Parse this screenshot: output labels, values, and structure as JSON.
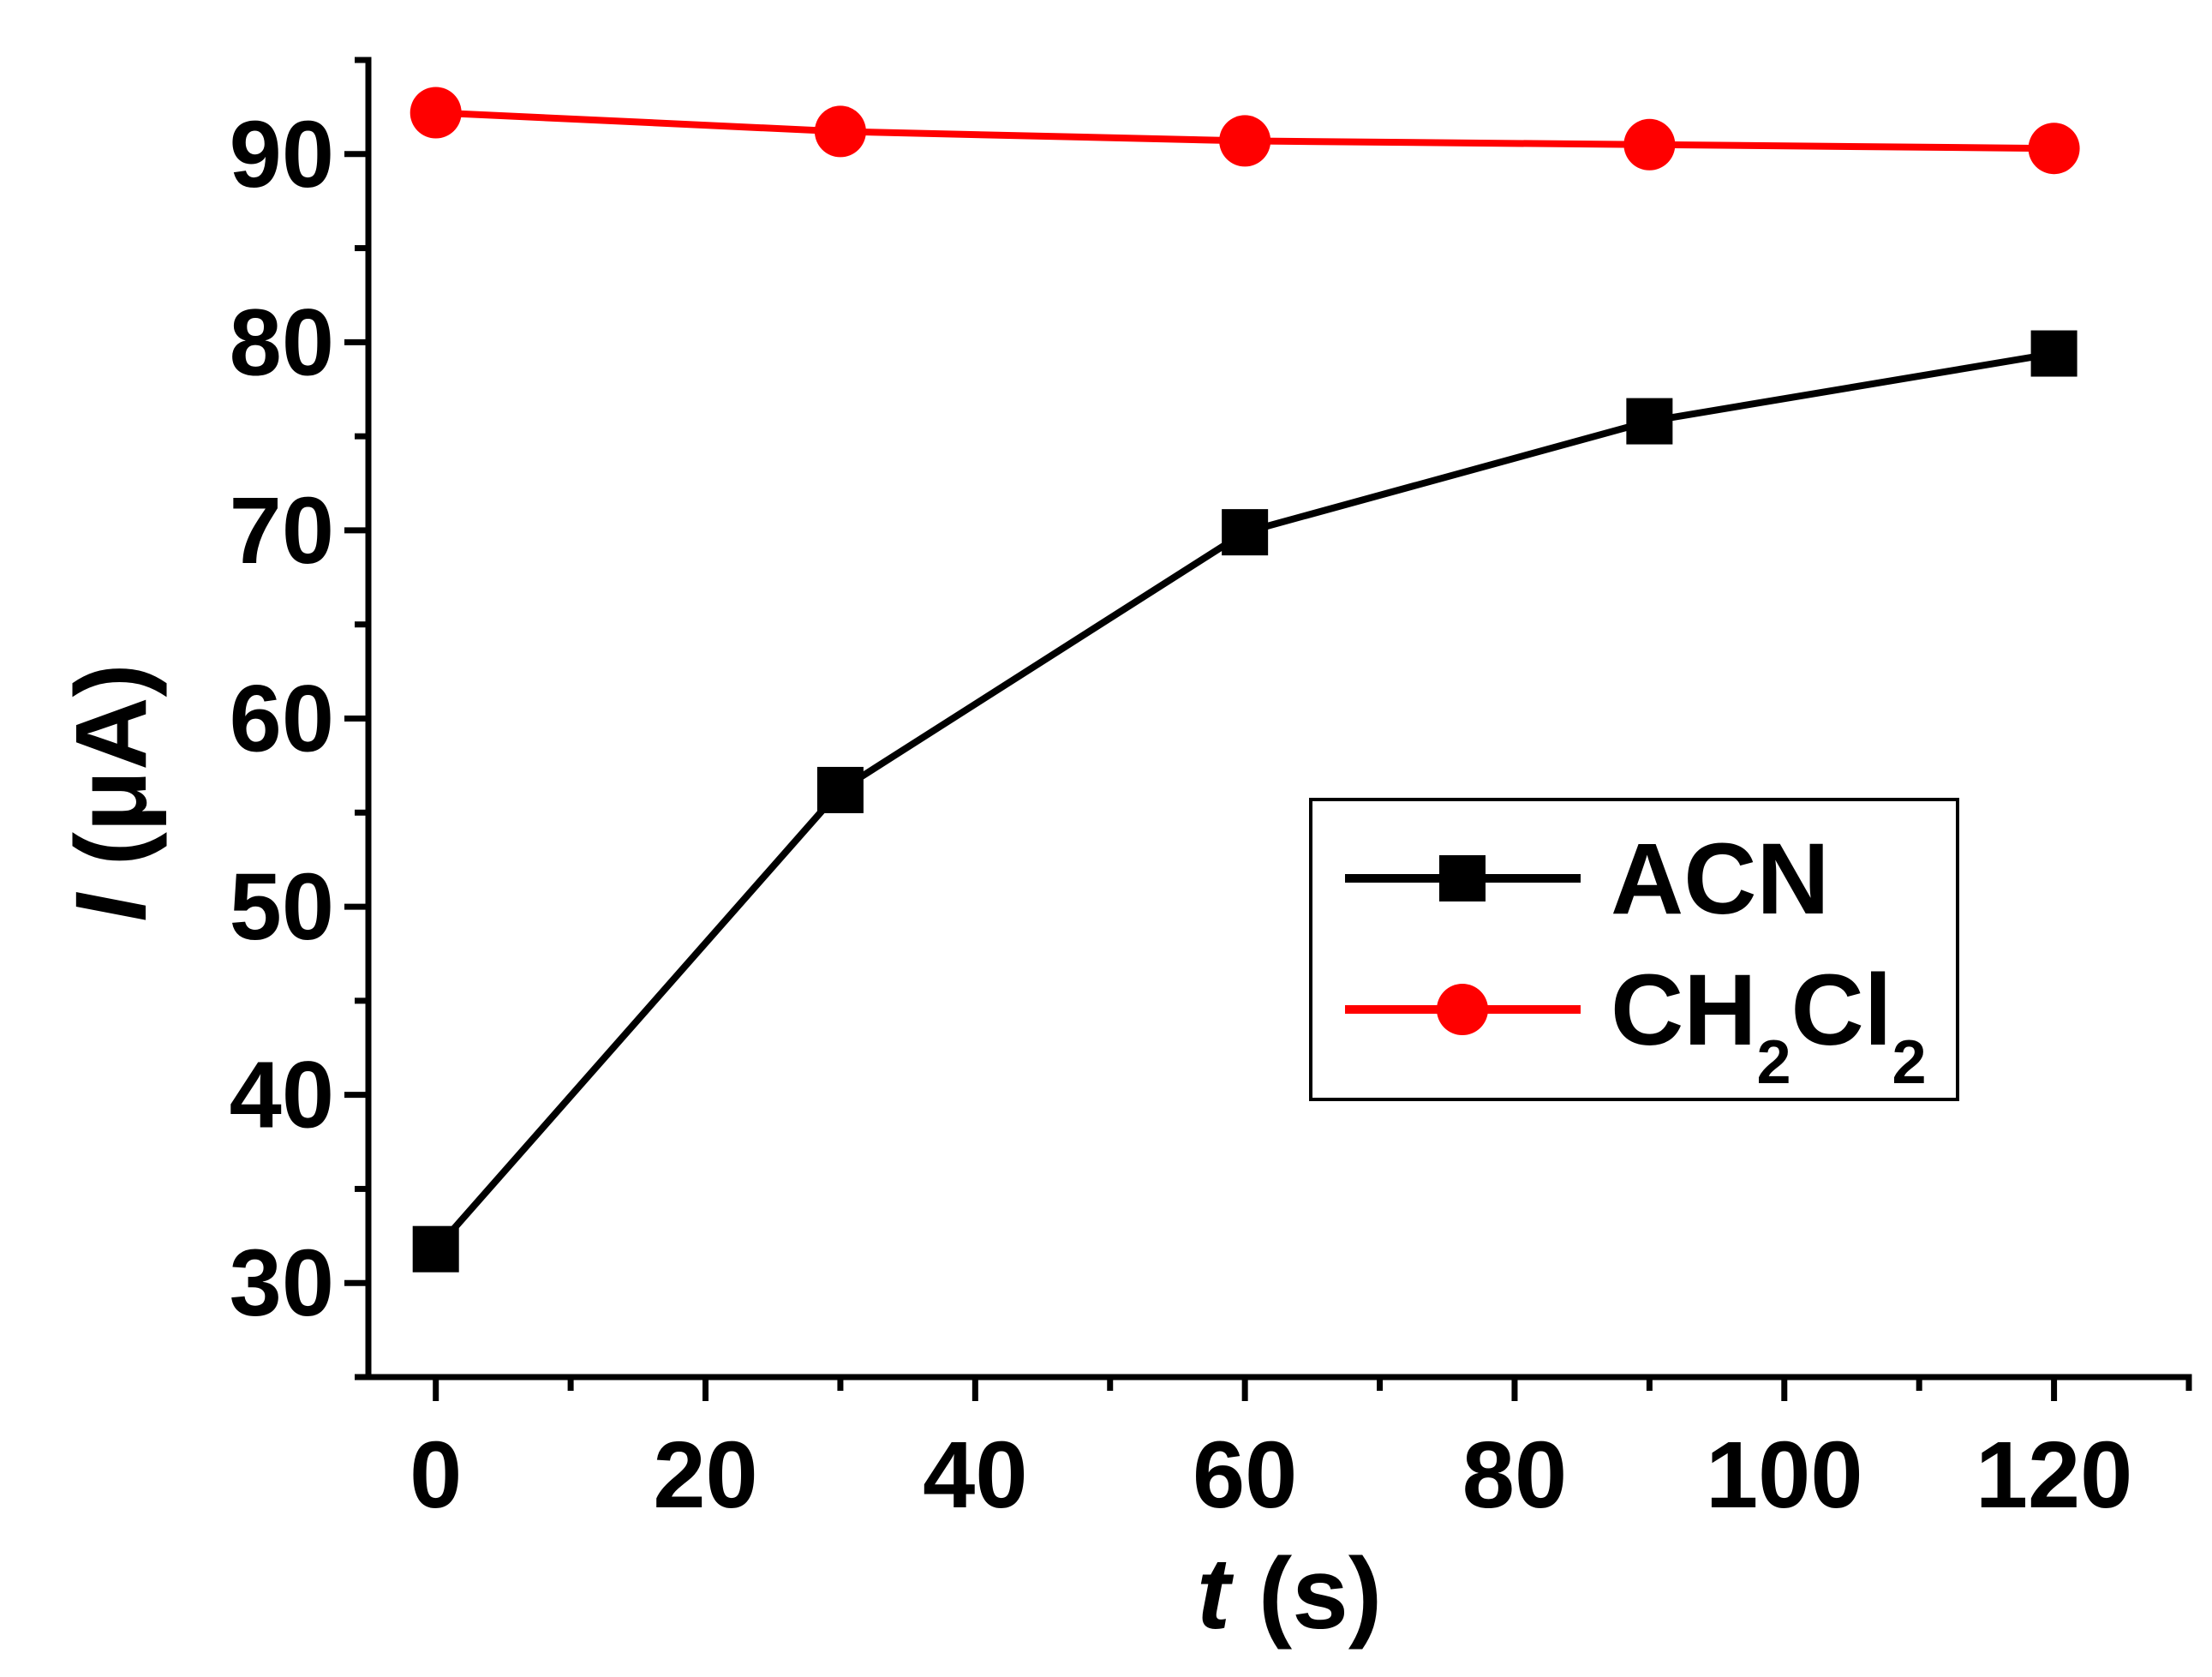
{
  "chart_data": {
    "type": "line",
    "x": [
      0,
      30,
      60,
      90,
      120
    ],
    "series": [
      {
        "name": "ACN",
        "legend_main": "ACN",
        "color": "#000000",
        "marker": "square",
        "values": [
          31.8,
          56.2,
          69.9,
          75.8,
          79.4
        ]
      },
      {
        "name": "CH2Cl2",
        "legend_main": "CH",
        "legend_sub1": "2",
        "legend_mid": "Cl",
        "legend_sub2": "2",
        "color": "#ff0000",
        "marker": "circle",
        "values": [
          92.2,
          91.2,
          90.7,
          90.5,
          90.3
        ]
      }
    ],
    "xlabel_italic": "t",
    "xlabel_rest": " (s)",
    "ylabel_italic": "I",
    "ylabel_rest": " (μA)",
    "xlim": [
      -5,
      130
    ],
    "ylim": [
      25,
      95
    ],
    "xticks": [
      0,
      20,
      40,
      60,
      80,
      100,
      120
    ],
    "xminor": [
      10,
      30,
      50,
      70,
      90,
      110,
      130
    ],
    "yticks": [
      30,
      40,
      50,
      60,
      70,
      80,
      90
    ],
    "yminor": [
      25,
      35,
      45,
      55,
      65,
      75,
      85,
      95
    ],
    "legend_position": "center-right"
  }
}
